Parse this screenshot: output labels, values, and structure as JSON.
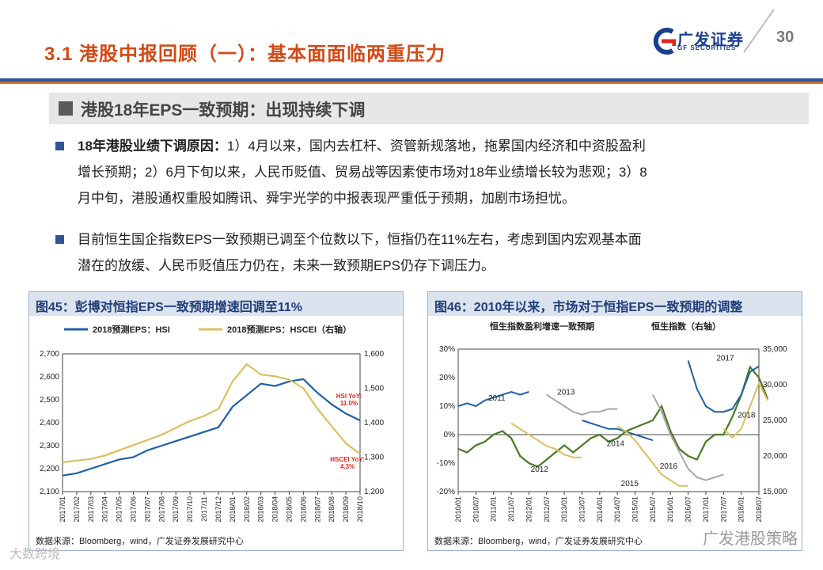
{
  "header": {
    "title": "3.1 港股中报回顾（一）：基本面面临两重压力",
    "logo_cn": "广发证券",
    "logo_en": "GF SECURITIES",
    "page_number": "30"
  },
  "section": {
    "title": "港股18年EPS一致预期：出现持续下调"
  },
  "bullets": [
    {
      "bold": "18年港股业绩下调原因：",
      "lines": [
        "1）4月以来，国内去杠杆、资管新规落地，拖累国内经济和中资股盈利",
        "增长预期；2）6月下旬以来，人民币贬值、贸易战等因素使市场对18年业绩增长较为悲观；3）8",
        "月中旬，港股通权重股如腾讯、舜宇光学的中报表现严重低于预期，加剧市场担忧。"
      ]
    },
    {
      "bold": "",
      "lines": [
        "目前恒生国企指数EPS一致预期已调至个位数以下，恒指仍在11%左右，考虑到国内宏观基本面",
        "潜在的放缓、人民币贬值压力仍在，未来一致预期EPS仍存下调压力。"
      ]
    }
  ],
  "colors": {
    "navy": "#1f5fa8",
    "gold": "#dcbf5c",
    "green": "#4a7a26",
    "grey": "#a8a8a8",
    "red": "#e0251b",
    "title": "#d34a16"
  },
  "chart_data": [
    {
      "type": "line",
      "title": "图45：彭博对恒指EPS一致预期增速回调至11%",
      "source": "数据来源：Bloomberg，wind，广发证券发展研究中心",
      "x_labels": [
        "2017/01",
        "2017/02",
        "2017/03",
        "2017/04",
        "2017/05",
        "2017/06",
        "2017/07",
        "2017/08",
        "2017/09",
        "2017/10",
        "2017/11",
        "2017/12",
        "2018/01",
        "2018/02",
        "2018/03",
        "2018/04",
        "2018/05",
        "2018/06",
        "2018/07",
        "2018/08",
        "2018/09",
        "2018/10"
      ],
      "y_left": {
        "min": 2100,
        "max": 2700,
        "ticks": [
          "2,100",
          "2,200",
          "2,300",
          "2,400",
          "2,500",
          "2,600",
          "2,700"
        ]
      },
      "y_right": {
        "min": 1200,
        "max": 1600,
        "ticks": [
          "1,200",
          "1,300",
          "1,400",
          "1,500",
          "1,600"
        ]
      },
      "series": [
        {
          "name": "2018预测EPS：HSI",
          "axis": "left",
          "values": [
            2170,
            2180,
            2200,
            2220,
            2240,
            2250,
            2280,
            2300,
            2320,
            2340,
            2360,
            2380,
            2470,
            2520,
            2570,
            2560,
            2580,
            2590,
            2530,
            2480,
            2440,
            2410
          ]
        },
        {
          "name": "2018预测EPS：HSCEI（右轴）",
          "axis": "right",
          "values": [
            1285,
            1290,
            1295,
            1305,
            1320,
            1335,
            1350,
            1365,
            1385,
            1405,
            1420,
            1440,
            1520,
            1570,
            1540,
            1535,
            1525,
            1500,
            1440,
            1390,
            1340,
            1310
          ]
        }
      ],
      "annotations": [
        {
          "lines": [
            "HSI YoY:",
            "11.0%"
          ]
        },
        {
          "lines": [
            "HSCEI YoY:",
            "4.3%"
          ]
        }
      ]
    },
    {
      "type": "line",
      "title": "图46：2010年以来，市场对于恒指EPS一致预期的调整",
      "source": "数据来源：Bloomberg，wind，广发证券发展研究中心",
      "legend": [
        "恒生指数盈利增速一致预期",
        "恒生指数（右轴）"
      ],
      "x_labels": [
        "2010/01",
        "2010/07",
        "2011/01",
        "2011/07",
        "2012/01",
        "2012/07",
        "2013/01",
        "2013/07",
        "2014/01",
        "2014/07",
        "2015/01",
        "2015/07",
        "2016/01",
        "2016/07",
        "2017/01",
        "2017/07",
        "2018/01",
        "2018/07"
      ],
      "y_left": {
        "min": -20,
        "max": 30,
        "ticks": [
          "-20%",
          "-10%",
          "0%",
          "10%",
          "20%",
          "30%"
        ]
      },
      "y_right": {
        "min": 15000,
        "max": 35000,
        "ticks": [
          "15,000",
          "20,000",
          "25,000",
          "30,000",
          "35,000"
        ]
      },
      "year_labels": [
        "2011",
        "2012",
        "2013",
        "2014",
        "2015",
        "2016",
        "2017",
        "2018"
      ],
      "series": [
        {
          "name": "恒生指数",
          "axis": "right",
          "x": [
            0,
            0.5,
            1,
            1.5,
            2,
            2.5,
            3,
            3.5,
            4,
            4.5,
            5,
            5.5,
            6,
            6.5,
            7,
            7.5,
            8,
            8.5,
            9,
            9.5,
            10,
            10.5,
            11,
            11.5,
            12,
            12.5,
            13,
            13.5,
            14,
            14.5,
            15,
            15.5,
            16,
            16.5,
            17,
            17.5
          ],
          "values": [
            21000,
            20500,
            21500,
            22000,
            23000,
            23500,
            22500,
            20000,
            19000,
            18500,
            19500,
            20500,
            21500,
            20500,
            21500,
            22500,
            23000,
            22000,
            22500,
            23500,
            24000,
            24500,
            25000,
            27000,
            23500,
            21000,
            20000,
            19500,
            22000,
            23000,
            23000,
            25500,
            28500,
            32500,
            31000,
            28000
          ]
        },
        {
          "name": "2011",
          "axis": "left",
          "x": [
            0,
            0.5,
            1,
            1.5,
            2,
            2.5,
            3,
            3.5,
            4
          ],
          "values": [
            10,
            11,
            10,
            12,
            13,
            14,
            15,
            14,
            15
          ]
        },
        {
          "name": "2012",
          "axis": "left",
          "x": [
            3,
            3.5,
            4,
            4.5,
            5,
            5.5,
            6,
            6.5,
            7
          ],
          "values": [
            4,
            2,
            0,
            -2,
            -4,
            -5,
            -7,
            -8,
            -8
          ]
        },
        {
          "name": "2013",
          "axis": "left",
          "x": [
            5,
            5.5,
            6,
            6.5,
            7,
            7.5,
            8,
            8.5,
            9
          ],
          "values": [
            14,
            12,
            10,
            8,
            7,
            8,
            8,
            9,
            9
          ]
        },
        {
          "name": "2014",
          "axis": "left",
          "x": [
            7,
            7.5,
            8,
            8.5,
            9,
            9.5,
            10,
            10.5,
            11
          ],
          "values": [
            5,
            4,
            3,
            2,
            2,
            1,
            0,
            -1,
            -2
          ]
        },
        {
          "name": "2015",
          "axis": "left",
          "x": [
            9,
            9.5,
            10,
            10.5,
            11,
            11.5,
            12,
            12.5,
            13
          ],
          "values": [
            3,
            1,
            -2,
            -6,
            -10,
            -14,
            -16,
            -18,
            -18
          ]
        },
        {
          "name": "2016",
          "axis": "left",
          "x": [
            11,
            11.5,
            12,
            12.5,
            13,
            13.5,
            14,
            14.5,
            15
          ],
          "values": [
            14,
            8,
            0,
            -6,
            -12,
            -15,
            -16,
            -15,
            -14
          ]
        },
        {
          "name": "2017",
          "axis": "left",
          "x": [
            13,
            13.5,
            14,
            14.5,
            15,
            15.5,
            16,
            16.5,
            17
          ],
          "values": [
            26,
            16,
            10,
            8,
            8,
            9,
            14,
            22,
            24
          ]
        },
        {
          "name": "2018",
          "axis": "left",
          "x": [
            15,
            15.5,
            16,
            16.5,
            17,
            17.5
          ],
          "values": [
            2,
            -1,
            2,
            10,
            18,
            12
          ]
        }
      ]
    }
  ],
  "watermarks": [
    "广发港股策略",
    "大数跨境"
  ]
}
